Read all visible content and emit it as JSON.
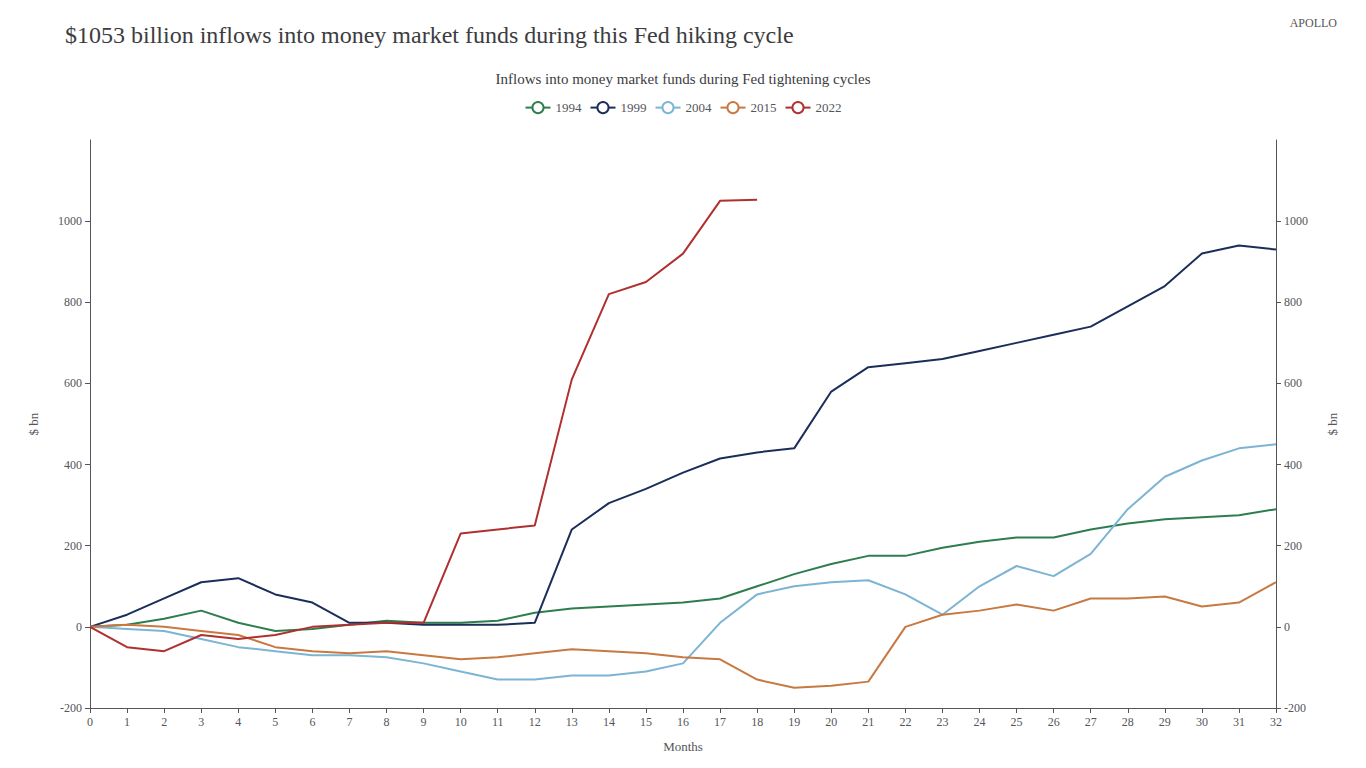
{
  "chart_data": {
    "type": "line",
    "title": "$1053 billion inflows into money market funds during this Fed hiking cycle",
    "subtitle": "Inflows into money market funds during Fed tightening cycles",
    "xlabel": "Months",
    "ylabel": "$ bn",
    "y2label": "$ bn",
    "annotations": [
      "APOLLO"
    ],
    "x": [
      0,
      1,
      2,
      3,
      4,
      5,
      6,
      7,
      8,
      9,
      10,
      11,
      12,
      13,
      14,
      15,
      16,
      17,
      18,
      19,
      20,
      21,
      22,
      23,
      24,
      25,
      26,
      27,
      28,
      29,
      30,
      31,
      32
    ],
    "series": [
      {
        "name": "1994",
        "color": "#2e7d4f",
        "values": [
          0,
          5,
          20,
          40,
          10,
          -10,
          -5,
          5,
          15,
          10,
          10,
          15,
          35,
          45,
          50,
          55,
          60,
          70,
          100,
          130,
          155,
          175,
          175,
          195,
          210,
          220,
          220,
          240,
          255,
          265,
          270,
          275,
          290
        ]
      },
      {
        "name": "1999",
        "color": "#1a2e5a",
        "values": [
          0,
          30,
          70,
          110,
          120,
          80,
          60,
          10,
          10,
          5,
          5,
          5,
          10,
          240,
          305,
          340,
          380,
          415,
          430,
          440,
          580,
          640,
          650,
          660,
          680,
          700,
          720,
          740,
          790,
          840,
          920,
          940,
          930
        ]
      },
      {
        "name": "2004",
        "color": "#7cb4d4",
        "values": [
          0,
          -5,
          -10,
          -30,
          -50,
          -60,
          -70,
          -70,
          -75,
          -90,
          -110,
          -130,
          -130,
          -120,
          -120,
          -110,
          -90,
          10,
          80,
          100,
          110,
          115,
          80,
          30,
          100,
          150,
          125,
          180,
          290,
          370,
          410,
          440,
          450
        ]
      },
      {
        "name": "2015",
        "color": "#c87941",
        "values": [
          0,
          5,
          0,
          -10,
          -20,
          -50,
          -60,
          -65,
          -60,
          -70,
          -80,
          -75,
          -65,
          -55,
          -60,
          -65,
          -75,
          -80,
          -130,
          -150,
          -145,
          -135,
          0,
          30,
          40,
          55,
          40,
          70,
          70,
          75,
          50,
          60,
          110
        ]
      },
      {
        "name": "2022",
        "color": "#b03030",
        "values": [
          0,
          -50,
          -60,
          -20,
          -30,
          -20,
          0,
          5,
          10,
          10,
          230,
          240,
          250,
          610,
          820,
          850,
          920,
          1050,
          1053,
          null,
          null,
          null,
          null,
          null,
          null,
          null,
          null,
          null,
          null,
          null,
          null,
          null,
          null
        ]
      }
    ],
    "xlim": [
      0,
      32
    ],
    "xticks": [
      0,
      1,
      2,
      3,
      4,
      5,
      6,
      7,
      8,
      9,
      10,
      11,
      12,
      13,
      14,
      15,
      16,
      17,
      18,
      19,
      20,
      21,
      22,
      23,
      24,
      25,
      26,
      27,
      28,
      29,
      30,
      31,
      32
    ],
    "ylim": [
      -200,
      1200
    ],
    "yticks": [
      -200,
      0,
      200,
      400,
      600,
      800,
      1000
    ],
    "y2lim": [
      -200,
      1200
    ],
    "y2ticks": [
      -200,
      0,
      200,
      400,
      600,
      800,
      1000
    ],
    "grid": false,
    "legend": "top"
  }
}
